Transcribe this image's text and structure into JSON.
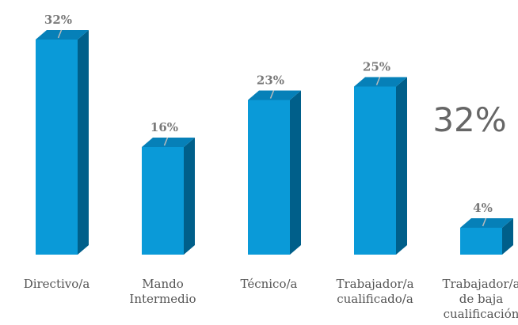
{
  "chart_data": {
    "type": "bar3d",
    "categories": [
      "Directivo/a",
      "Mando\nIntermedio",
      "Técnico/a",
      "Trabajador/a\ncualificado/a",
      "Trabajador/a\nde baja\ncualificación"
    ],
    "values": [
      32,
      16,
      23,
      25,
      4
    ],
    "value_labels": [
      "32%",
      "16%",
      "23%",
      "25%",
      "4%"
    ],
    "color": "#0a9ad8",
    "annotation": "32%"
  }
}
